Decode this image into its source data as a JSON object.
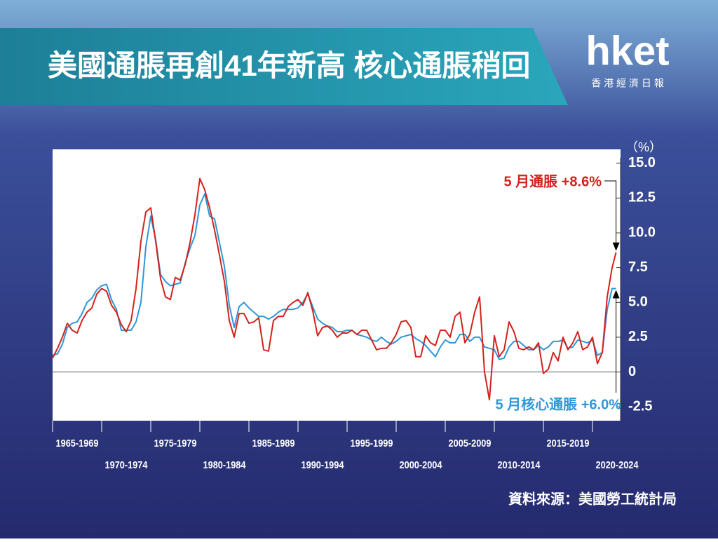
{
  "header": {
    "title": "美國通脹再創41年新高  核心通脹稍回",
    "logo": "hket",
    "logo_sub": "香 港 經 濟 日 報"
  },
  "chart_data": {
    "type": "line",
    "y_unit": "（%）",
    "x": [
      1965,
      1965.5,
      1966,
      1966.5,
      1967,
      1967.5,
      1968,
      1968.5,
      1969,
      1969.5,
      1970,
      1970.5,
      1971,
      1971.5,
      1972,
      1972.5,
      1973,
      1973.5,
      1974,
      1974.5,
      1975,
      1975.5,
      1976,
      1976.5,
      1977,
      1977.5,
      1978,
      1978.5,
      1979,
      1979.5,
      1980,
      1980.5,
      1981,
      1981.5,
      1982,
      1982.5,
      1983,
      1983.5,
      1984,
      1984.5,
      1985,
      1985.5,
      1986,
      1986.5,
      1987,
      1987.5,
      1988,
      1988.5,
      1989,
      1989.5,
      1990,
      1990.5,
      1991,
      1991.5,
      1992,
      1992.5,
      1993,
      1993.5,
      1994,
      1994.5,
      1995,
      1995.5,
      1996,
      1996.5,
      1997,
      1997.5,
      1998,
      1998.5,
      1999,
      1999.5,
      2000,
      2000.5,
      2001,
      2001.5,
      2002,
      2002.5,
      2003,
      2003.5,
      2004,
      2004.5,
      2005,
      2005.5,
      2006,
      2006.5,
      2007,
      2007.5,
      2008,
      2008.5,
      2009,
      2009.5,
      2010,
      2010.5,
      2011,
      2011.5,
      2012,
      2012.5,
      2013,
      2013.5,
      2014,
      2014.5,
      2015,
      2015.5,
      2016,
      2016.5,
      2017,
      2017.5,
      2018,
      2018.5,
      2019,
      2019.5,
      2020,
      2020.5,
      2021,
      2021.5,
      2022,
      2022.4
    ],
    "series": [
      {
        "name": "通脹",
        "color": "#d3221c",
        "values": [
          1.0,
          1.7,
          2.5,
          3.5,
          3.0,
          2.8,
          3.7,
          4.3,
          4.6,
          5.6,
          6.0,
          5.8,
          4.8,
          4.3,
          3.4,
          2.9,
          3.7,
          6.0,
          9.4,
          11.5,
          11.8,
          9.4,
          6.7,
          5.4,
          5.2,
          6.8,
          6.6,
          7.7,
          9.3,
          11.3,
          13.9,
          13.1,
          11.8,
          10.2,
          8.4,
          6.5,
          3.7,
          2.5,
          4.2,
          4.2,
          3.5,
          3.6,
          3.9,
          1.6,
          1.5,
          3.7,
          4.0,
          4.0,
          4.7,
          5.0,
          5.2,
          4.8,
          5.7,
          4.4,
          2.6,
          3.2,
          3.3,
          3.0,
          2.5,
          2.8,
          2.8,
          3.0,
          2.7,
          3.0,
          3.0,
          2.3,
          1.6,
          1.7,
          1.7,
          2.1,
          2.7,
          3.6,
          3.7,
          3.2,
          1.1,
          1.1,
          2.6,
          2.1,
          1.9,
          3.0,
          3.0,
          2.5,
          4.0,
          4.3,
          2.1,
          2.7,
          4.3,
          5.4,
          0.0,
          -2.0,
          2.6,
          1.1,
          1.6,
          3.6,
          2.9,
          1.7,
          1.6,
          1.8,
          1.6,
          2.1,
          -0.1,
          0.2,
          1.4,
          0.8,
          2.5,
          1.6,
          2.1,
          2.9,
          1.6,
          1.8,
          2.5,
          0.6,
          1.4,
          5.4,
          7.5,
          8.6
        ]
      },
      {
        "name": "核心通脹",
        "color": "#2f97d8",
        "values": [
          1.2,
          1.3,
          2.0,
          3.2,
          3.5,
          3.6,
          4.2,
          5.0,
          5.3,
          5.9,
          6.2,
          6.3,
          5.2,
          4.5,
          3.0,
          3.0,
          3.0,
          3.6,
          5.0,
          9.0,
          11.2,
          9.5,
          7.0,
          6.5,
          6.2,
          6.3,
          6.4,
          7.8,
          8.9,
          9.8,
          12.0,
          12.8,
          11.2,
          11.0,
          9.3,
          7.6,
          4.8,
          3.2,
          4.7,
          5.0,
          4.6,
          4.3,
          4.0,
          4.0,
          3.8,
          4.0,
          4.3,
          4.5,
          4.5,
          4.5,
          4.6,
          5.0,
          5.6,
          4.7,
          3.8,
          3.5,
          3.3,
          3.2,
          2.9,
          2.9,
          3.0,
          3.0,
          2.7,
          2.6,
          2.5,
          2.3,
          2.2,
          2.5,
          2.2,
          2.0,
          2.2,
          2.5,
          2.6,
          2.7,
          2.4,
          2.2,
          1.9,
          1.5,
          1.1,
          1.8,
          2.3,
          2.1,
          2.1,
          2.7,
          2.7,
          2.2,
          2.5,
          2.5,
          1.8,
          1.7,
          1.6,
          0.9,
          1.0,
          1.8,
          2.2,
          2.2,
          1.9,
          1.6,
          1.6,
          1.9,
          1.6,
          1.8,
          2.2,
          2.2,
          2.3,
          1.7,
          1.8,
          2.3,
          2.2,
          2.1,
          2.3,
          1.2,
          1.4,
          4.5,
          6.0,
          6.0
        ]
      }
    ],
    "xlim": [
      1965,
      2022.5
    ],
    "xticks": [
      {
        "value": 1965,
        "label": "1965-1969"
      },
      {
        "value": 1970,
        "label": "1970-1974"
      },
      {
        "value": 1975,
        "label": "1975-1979"
      },
      {
        "value": 1980,
        "label": "1980-1984"
      },
      {
        "value": 1985,
        "label": "1985-1989"
      },
      {
        "value": 1990,
        "label": "1990-1994"
      },
      {
        "value": 1995,
        "label": "1995-1999"
      },
      {
        "value": 2000,
        "label": "2000-2004"
      },
      {
        "value": 2005,
        "label": "2005-2009"
      },
      {
        "value": 2010,
        "label": "2010-2014"
      },
      {
        "value": 2015,
        "label": "2015-2019"
      },
      {
        "value": 2020,
        "label": "2020-2024"
      }
    ],
    "ylim": [
      -3.5,
      16
    ],
    "yticks": [
      {
        "value": 15,
        "label": "15.0"
      },
      12.5,
      {
        "value": 10,
        "label": "10.0"
      },
      7.5,
      {
        "value": 5,
        "label": "5.0"
      },
      2.5,
      0,
      -2.5
    ],
    "annotations": [
      "5 月通脹 +8.6%",
      "5 月核心通脹 +6.0%"
    ],
    "source": "資料來源：美國勞工統計局"
  }
}
